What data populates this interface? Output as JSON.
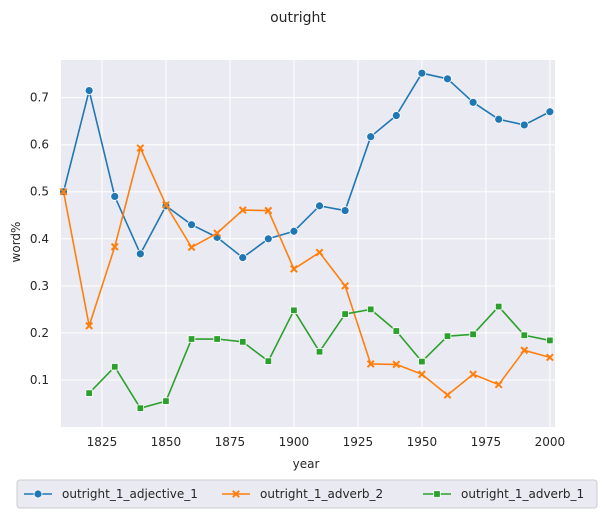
{
  "chart_data": {
    "type": "line",
    "title": "outright",
    "xlabel": "year",
    "ylabel": "word%",
    "xlim": [
      1809,
      2002
    ],
    "ylim": [
      0.0,
      0.78
    ],
    "x_ticks": [
      1825,
      1850,
      1875,
      1900,
      1925,
      1950,
      1975,
      2000
    ],
    "y_ticks": [
      0.1,
      0.2,
      0.3,
      0.4,
      0.5,
      0.6,
      0.7
    ],
    "grid": true,
    "legend_position": "bottom",
    "series": [
      {
        "name": "outright_1_adjective_1",
        "color": "#1f77b4",
        "marker": "circle",
        "x": [
          1810,
          1820,
          1830,
          1840,
          1850,
          1860,
          1870,
          1880,
          1890,
          1900,
          1910,
          1920,
          1930,
          1940,
          1950,
          1960,
          1970,
          1980,
          1990,
          2000
        ],
        "y": [
          0.5,
          0.715,
          0.49,
          0.368,
          0.47,
          0.43,
          0.403,
          0.36,
          0.4,
          0.416,
          0.47,
          0.46,
          0.617,
          0.662,
          0.752,
          0.74,
          0.69,
          0.654,
          0.642,
          0.67
        ]
      },
      {
        "name": "outright_1_adverb_2",
        "color": "#ff7f0e",
        "marker": "x",
        "x": [
          1810,
          1820,
          1830,
          1840,
          1850,
          1860,
          1870,
          1880,
          1890,
          1900,
          1910,
          1920,
          1930,
          1940,
          1950,
          1960,
          1970,
          1980,
          1990,
          2000
        ],
        "y": [
          0.5,
          0.215,
          0.383,
          0.593,
          0.472,
          0.382,
          0.412,
          0.461,
          0.46,
          0.336,
          0.371,
          0.3,
          0.134,
          0.133,
          0.112,
          0.068,
          0.112,
          0.09,
          0.163,
          0.148
        ]
      },
      {
        "name": "outright_1_adverb_1",
        "color": "#2ca02c",
        "marker": "square",
        "x": [
          1820,
          1830,
          1840,
          1850,
          1860,
          1870,
          1880,
          1890,
          1900,
          1910,
          1920,
          1930,
          1940,
          1950,
          1960,
          1970,
          1980,
          1990,
          2000
        ],
        "y": [
          0.072,
          0.128,
          0.04,
          0.055,
          0.187,
          0.187,
          0.181,
          0.14,
          0.248,
          0.16,
          0.24,
          0.25,
          0.204,
          0.139,
          0.193,
          0.197,
          0.256,
          0.195,
          0.184
        ]
      }
    ]
  }
}
